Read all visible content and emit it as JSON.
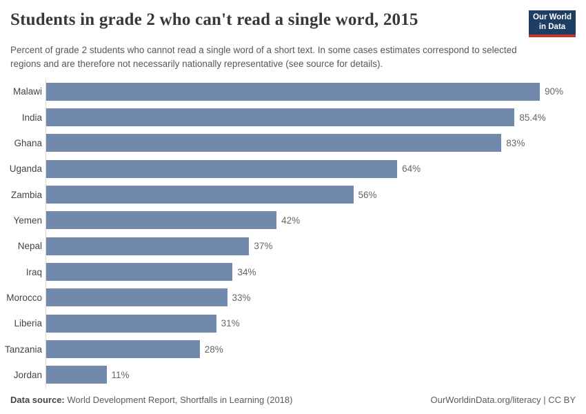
{
  "header": {
    "title": "Students in grade 2 who can't read a single word, 2015",
    "subtitle": "Percent of grade 2 students who cannot read a single word of a short text. In some cases estimates correspond to selected regions and are therefore not necessarily nationally representative (see source for details).",
    "logo": {
      "line1": "Our World",
      "line2": "in Data",
      "bg_color": "#1d3d63",
      "stripe_color": "#c8332d"
    }
  },
  "chart_data": {
    "type": "bar",
    "orientation": "horizontal",
    "title": "Students in grade 2 who can't read a single word, 2015",
    "categories": [
      "Malawi",
      "India",
      "Ghana",
      "Uganda",
      "Zambia",
      "Yemen",
      "Nepal",
      "Iraq",
      "Morocco",
      "Liberia",
      "Tanzania",
      "Jordan"
    ],
    "values": [
      90,
      85.4,
      83,
      64,
      56,
      42,
      37,
      34,
      33,
      31,
      28,
      11
    ],
    "value_labels": [
      "90%",
      "85.4%",
      "83%",
      "64%",
      "56%",
      "42%",
      "37%",
      "34%",
      "33%",
      "31%",
      "28%",
      "11%"
    ],
    "xlabel": "",
    "ylabel": "",
    "xlim": [
      0,
      90
    ],
    "grid": false,
    "legend": false,
    "bar_color": "#7289ae",
    "axis_line_color": "#d9d9d9"
  },
  "footer": {
    "source_label": "Data source:",
    "source_text": " World Development Report, Shortfalls in Learning (2018)",
    "url": "OurWorldinData.org/literacy",
    "separator": " | ",
    "license": "CC BY"
  }
}
